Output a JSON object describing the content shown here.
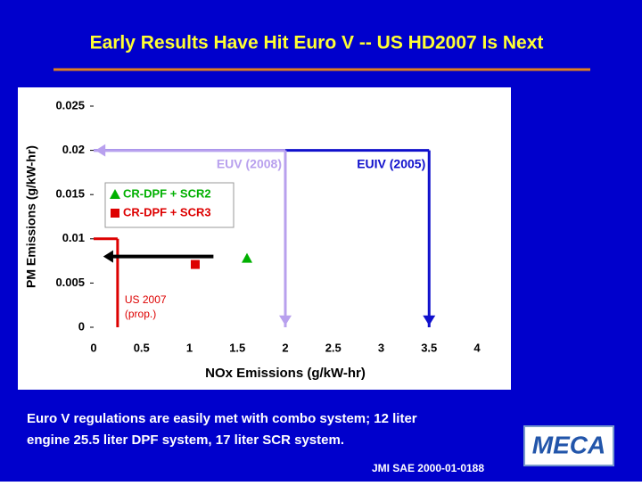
{
  "title": "Early Results Have Hit Euro V -- US HD2007 Is Next",
  "chart_data": {
    "type": "scatter",
    "x_label": "NOx Emissions (g/kW-hr)",
    "y_label": "PM Emissions (g/kW-hr)",
    "xlim": [
      0,
      4
    ],
    "ylim": [
      0,
      0.025
    ],
    "xticks": [
      0,
      0.5,
      1,
      1.5,
      2,
      2.5,
      3,
      3.5,
      4
    ],
    "yticks": [
      0,
      0.005,
      0.01,
      0.015,
      0.02,
      0.025
    ],
    "series": [
      {
        "name": "CR-DPF + SCR2",
        "color": "#00b000",
        "marker": "triangle",
        "x": [
          1.6
        ],
        "values": [
          0.0078
        ]
      },
      {
        "name": "CR-DPF + SCR3",
        "color": "#dd0000",
        "marker": "square",
        "x": [
          1.06
        ],
        "values": [
          0.0071
        ]
      }
    ],
    "limits": [
      {
        "label": [
          "EUIV (2005)"
        ],
        "color": "#1010cc",
        "x": 3.5,
        "y": 0.02,
        "arrows": [
          "down"
        ]
      },
      {
        "label": [
          "EUV (2008)"
        ],
        "color": "#b8a0ee",
        "x": 2,
        "y": 0.02,
        "arrows": [
          "left",
          "down"
        ]
      },
      {
        "label": [
          "US 2007",
          "(prop.)"
        ],
        "color": "#dd0000",
        "x": 0.25,
        "y": 0.01,
        "arrows": []
      }
    ],
    "arrow": {
      "color": "#000000",
      "x": [
        1.25,
        0.1
      ],
      "y": 0.008
    }
  },
  "footer": {
    "text": [
      "Euro V regulations are easily met with combo system; 12 liter",
      "engine 25.5 liter DPF system, 17 liter SCR system."
    ],
    "source": "JMI SAE 2000-01-0188",
    "logo": "MECA"
  }
}
